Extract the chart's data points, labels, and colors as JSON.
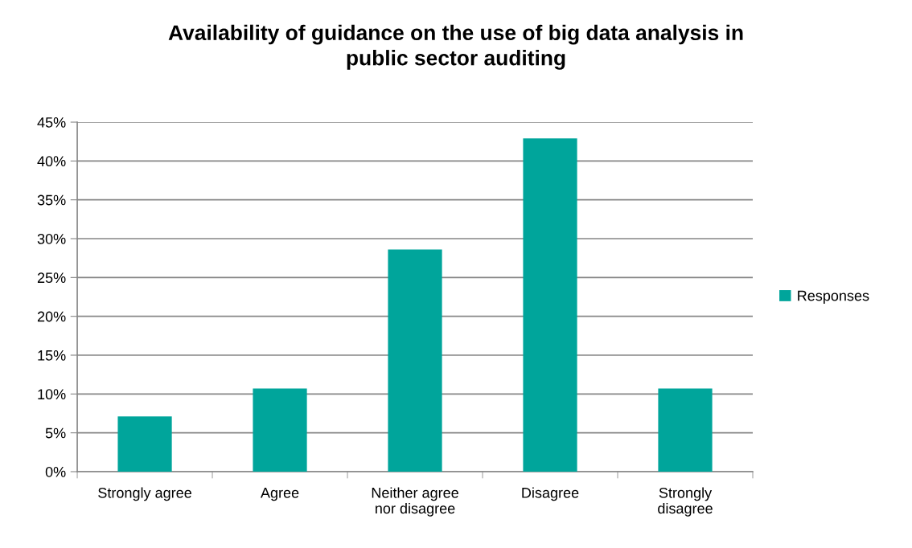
{
  "chart_data": {
    "type": "bar",
    "title": "Availability of guidance on the use of big data analysis in\npublic sector auditing",
    "categories": [
      "Strongly agree",
      "Agree",
      "Neither agree\nnor disagree",
      "Disagree",
      "Strongly\ndisagree"
    ],
    "series": [
      {
        "name": "Responses",
        "color": "#00a59b",
        "values": [
          7.1,
          10.7,
          28.6,
          42.9,
          10.7
        ]
      }
    ],
    "ylim": [
      0,
      45
    ],
    "yticks": [
      {
        "value": 0,
        "label": "0%"
      },
      {
        "value": 5,
        "label": "5%"
      },
      {
        "value": 10,
        "label": "10%"
      },
      {
        "value": 15,
        "label": "15%"
      },
      {
        "value": 20,
        "label": "20%"
      },
      {
        "value": 25,
        "label": "25%"
      },
      {
        "value": 30,
        "label": "30%"
      },
      {
        "value": 35,
        "label": "35%"
      },
      {
        "value": 40,
        "label": "40%"
      },
      {
        "value": 45,
        "label": "45%"
      }
    ],
    "grid": "y",
    "legend": "right"
  }
}
